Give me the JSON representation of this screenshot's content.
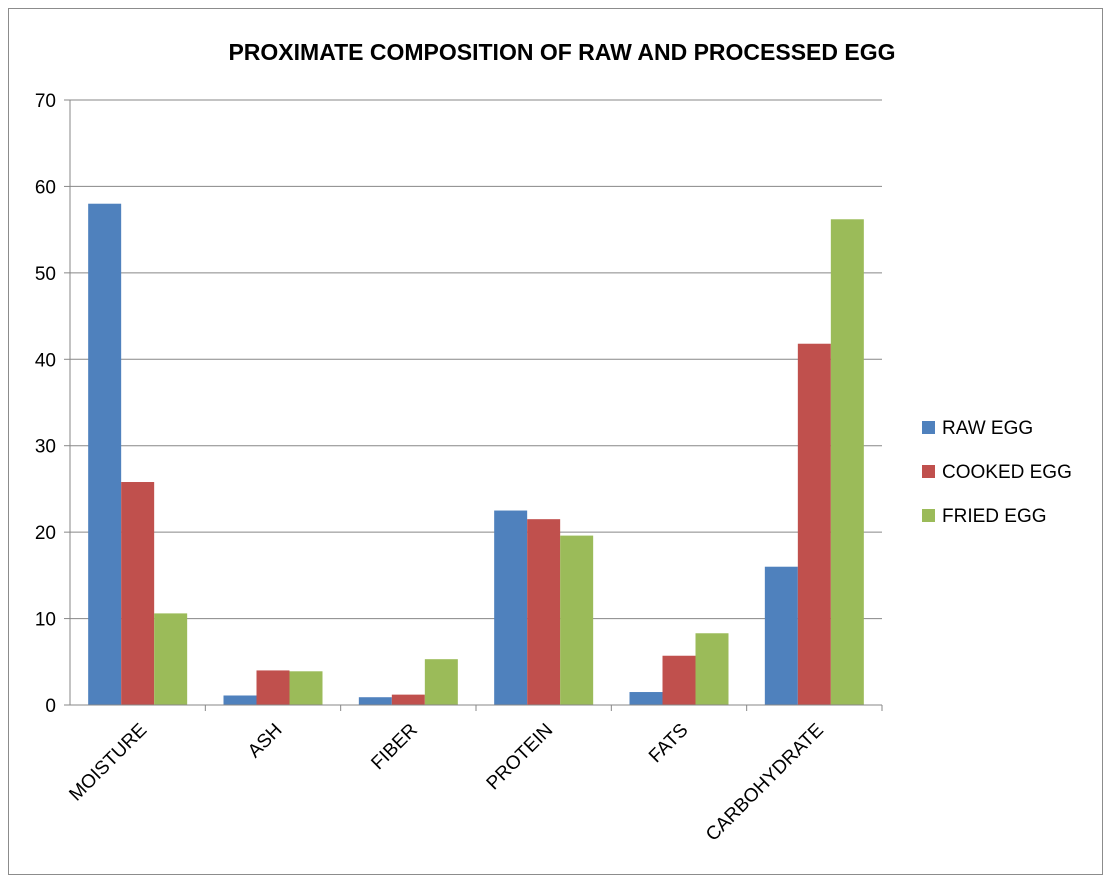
{
  "chart_data": {
    "type": "bar",
    "title": "PROXIMATE COMPOSITION OF RAW AND PROCESSED EGG",
    "xlabel": "",
    "ylabel": "",
    "categories": [
      "MOISTURE",
      "ASH",
      "FIBER",
      "PROTEIN",
      "FATS",
      "CARBOHYDRATE"
    ],
    "series": [
      {
        "name": "RAW EGG",
        "color": "#4F81BD",
        "values": [
          58.0,
          1.1,
          0.9,
          22.5,
          1.5,
          16.0
        ]
      },
      {
        "name": "COOKED EGG",
        "color": "#C0504D",
        "values": [
          25.8,
          4.0,
          1.2,
          21.5,
          5.7,
          41.8
        ]
      },
      {
        "name": "FRIED EGG",
        "color": "#9BBB59",
        "values": [
          10.6,
          3.9,
          5.3,
          19.6,
          8.3,
          56.2
        ]
      }
    ],
    "ylim": [
      0,
      70
    ],
    "yticks": [
      0,
      10,
      20,
      30,
      40,
      50,
      60,
      70
    ],
    "grid": true,
    "legend_position": "right"
  }
}
